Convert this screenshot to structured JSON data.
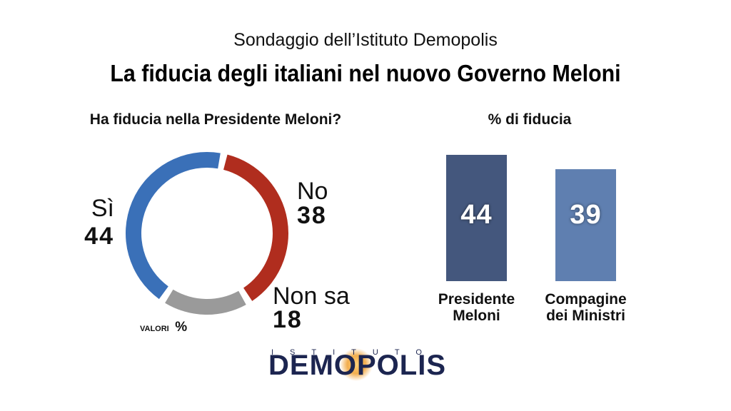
{
  "header": {
    "subtitle": "Sondaggio dell’Istituto Demopolis",
    "title": "La fiducia degli italiani nel nuovo Governo Meloni"
  },
  "chart_data": [
    {
      "type": "pie",
      "title": "Ha fiducia nella Presidente Meloni?",
      "labels": [
        "Sì",
        "No",
        "Non sa"
      ],
      "values": [
        44,
        38,
        18
      ],
      "colors": [
        "#3a70b8",
        "#b02d1e",
        "#9a9a9a"
      ],
      "unit_note": {
        "word": "VALORI",
        "symbol": "%"
      }
    },
    {
      "type": "bar",
      "title": "% di fiducia",
      "categories": [
        [
          "Presidente",
          "Meloni"
        ],
        [
          "Compagine",
          "dei Ministri"
        ]
      ],
      "values": [
        44,
        39
      ],
      "colors": [
        "#44577d",
        "#5f7fb0"
      ]
    }
  ],
  "logo": {
    "top": "ISTITUTO",
    "main": "DEMOPOLIS",
    "colors": {
      "text": "#1c2550",
      "o_glow": "#f0a030"
    }
  }
}
